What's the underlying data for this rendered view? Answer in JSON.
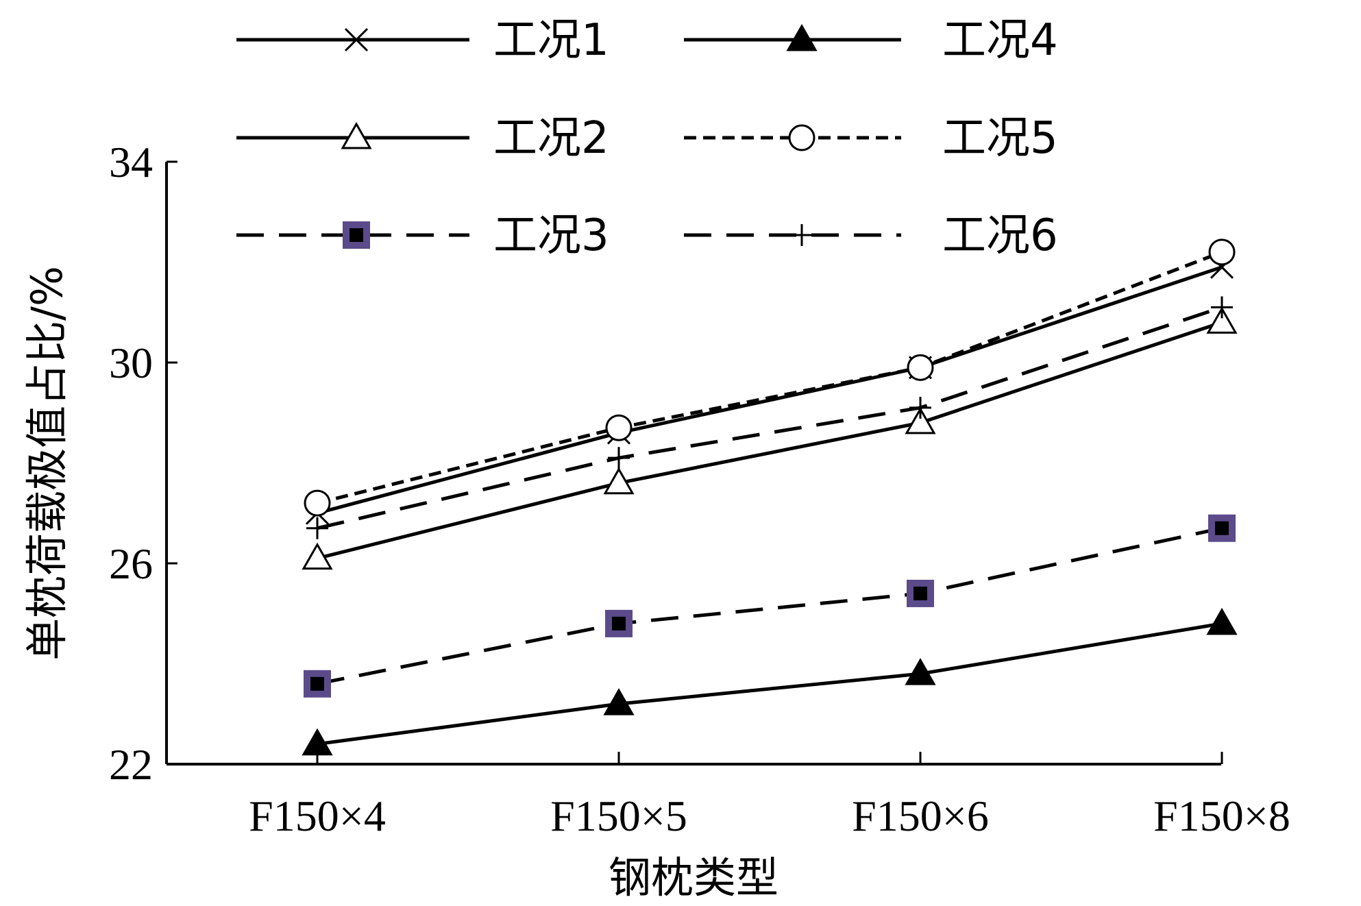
{
  "chart_data": {
    "type": "line",
    "categories": [
      "F150×4",
      "F150×5",
      "F150×6",
      "F150×8"
    ],
    "xlabel": "钢枕类型",
    "ylabel": "单枕荷载极值占比/%",
    "ylim": [
      22,
      34
    ],
    "yticks": [
      22,
      26,
      30,
      34
    ],
    "grid": false,
    "legend_position": "top",
    "series": [
      {
        "name": "工况1",
        "values": [
          27.0,
          28.6,
          29.9,
          31.9
        ],
        "line": "solid",
        "marker": "x",
        "color": "#000000"
      },
      {
        "name": "工况2",
        "values": [
          26.1,
          27.6,
          28.8,
          30.8
        ],
        "line": "solid",
        "marker": "triangle-open",
        "color": "#000000"
      },
      {
        "name": "工况3",
        "values": [
          23.6,
          24.8,
          25.4,
          26.7
        ],
        "line": "dashed",
        "marker": "square",
        "color": "#000000",
        "marker_edge": "#5b4b8a"
      },
      {
        "name": "工况4",
        "values": [
          22.4,
          23.2,
          23.8,
          24.8
        ],
        "line": "solid",
        "marker": "triangle-filled",
        "color": "#000000"
      },
      {
        "name": "工况5",
        "values": [
          27.2,
          28.7,
          29.9,
          32.2
        ],
        "line": "dotted",
        "marker": "circle-open",
        "color": "#000000"
      },
      {
        "name": "工况6",
        "values": [
          26.7,
          28.1,
          29.1,
          31.1
        ],
        "line": "dashed",
        "marker": "plus",
        "color": "#000000"
      }
    ]
  }
}
